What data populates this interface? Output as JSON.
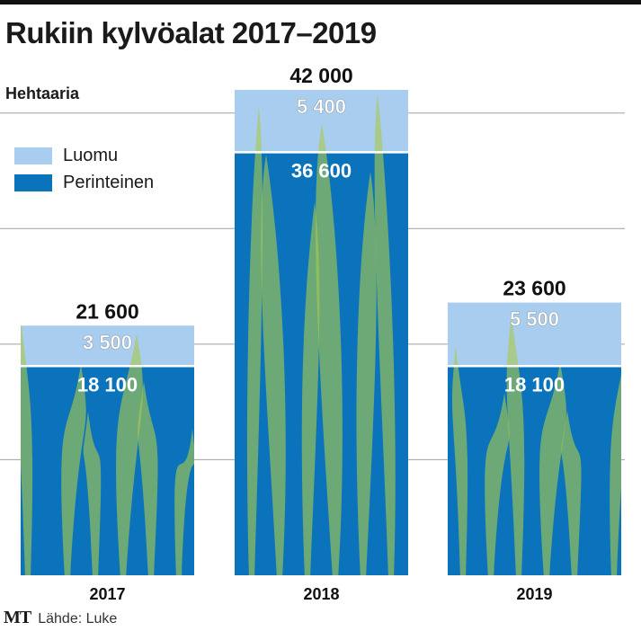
{
  "header": {
    "title": "Rukiin kylvöalat 2017–2019",
    "unit": "Hehtaaria"
  },
  "legend": [
    {
      "label": "Luomu",
      "color": "#a9cdee"
    },
    {
      "label": "Perinteinen",
      "color": "#0b73bb"
    }
  ],
  "footer": {
    "logo": "MT",
    "source": "Lähde: Luke"
  },
  "chart_data": {
    "type": "bar",
    "stacked": true,
    "categories": [
      "2017",
      "2018",
      "2019"
    ],
    "series": [
      {
        "name": "Perinteinen",
        "values": [
          18100,
          36600,
          18100
        ],
        "labels": [
          "18 100",
          "36 600",
          "18 100"
        ],
        "color": "#0b73bb"
      },
      {
        "name": "Luomu",
        "values": [
          3500,
          5400,
          5500
        ],
        "labels": [
          "3 500",
          "5 400",
          "5 500"
        ],
        "color": "#a9cdee"
      }
    ],
    "totals": [
      21600,
      42000,
      23600
    ],
    "total_labels": [
      "21 600",
      "42 000",
      "23 600"
    ],
    "ylabel": "Hehtaaria",
    "ylim": [
      0,
      42000
    ],
    "grid": true,
    "legend_position": "top-left",
    "grain_color": "#a8c94e"
  }
}
